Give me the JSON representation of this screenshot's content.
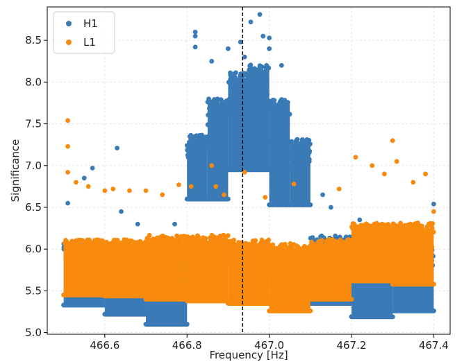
{
  "chart_data": {
    "type": "scatter",
    "xlabel": "Frequency [Hz]",
    "ylabel": "Significance",
    "xlim": [
      466.46,
      467.44
    ],
    "ylim": [
      4.98,
      8.9
    ],
    "xticks": [
      466.6,
      466.8,
      467.0,
      467.2,
      467.4
    ],
    "xtick_labels": [
      "466.6",
      "466.8",
      "467.0",
      "467.2",
      "467.4"
    ],
    "yticks": [
      5.0,
      5.5,
      6.0,
      6.5,
      7.0,
      7.5,
      8.0,
      8.5
    ],
    "ytick_labels": [
      "5.0",
      "5.5",
      "6.0",
      "6.5",
      "7.0",
      "7.5",
      "8.0",
      "8.5"
    ],
    "grid": true,
    "legend_position": "top-left",
    "vline": {
      "x": 466.935,
      "style": "dashed",
      "color": "#000000"
    },
    "series": [
      {
        "name": "H1",
        "color": "#3a7ab6",
        "segments": [
          {
            "x": [
              466.5,
              466.6
            ],
            "floor": 5.33,
            "dense_top": 6.0
          },
          {
            "x": [
              466.6,
              466.7
            ],
            "floor": 5.22,
            "dense_top": 5.95
          },
          {
            "x": [
              466.7,
              466.8
            ],
            "floor": 5.1,
            "dense_top": 5.95
          },
          {
            "x": [
              466.8,
              466.85
            ],
            "floor": 6.6,
            "dense_top": 7.3
          },
          {
            "x": [
              466.85,
              466.9
            ],
            "floor": 6.6,
            "dense_top": 7.75
          },
          {
            "x": [
              466.9,
              466.95
            ],
            "floor": 6.95,
            "dense_top": 8.05
          },
          {
            "x": [
              466.95,
              467.0
            ],
            "floor": 6.95,
            "dense_top": 8.15
          },
          {
            "x": [
              467.0,
              467.05
            ],
            "floor": 6.53,
            "dense_top": 7.75
          },
          {
            "x": [
              467.05,
              467.1
            ],
            "floor": 6.53,
            "dense_top": 7.25
          },
          {
            "x": [
              467.1,
              467.2
            ],
            "floor": 5.35,
            "dense_top": 6.1
          },
          {
            "x": [
              467.2,
              467.3
            ],
            "floor": 5.19,
            "dense_top": 6.0
          },
          {
            "x": [
              467.3,
              467.4
            ],
            "floor": 5.26,
            "dense_top": 5.95
          }
        ],
        "outliers": [
          [
            466.51,
            6.55
          ],
          [
            466.55,
            6.85
          ],
          [
            466.57,
            6.97
          ],
          [
            466.63,
            7.21
          ],
          [
            466.64,
            6.45
          ],
          [
            466.68,
            6.3
          ],
          [
            466.77,
            6.3
          ],
          [
            466.82,
            8.6
          ],
          [
            466.82,
            8.55
          ],
          [
            466.82,
            8.42
          ],
          [
            466.86,
            8.25
          ],
          [
            466.9,
            8.4
          ],
          [
            466.93,
            8.48
          ],
          [
            466.94,
            8.3
          ],
          [
            466.955,
            8.72
          ],
          [
            466.977,
            8.81
          ],
          [
            466.985,
            8.55
          ],
          [
            467.0,
            8.53
          ],
          [
            467.0,
            8.4
          ],
          [
            467.03,
            8.2
          ],
          [
            467.13,
            6.65
          ],
          [
            467.15,
            6.5
          ],
          [
            467.22,
            6.35
          ],
          [
            467.4,
            6.54
          ]
        ]
      },
      {
        "name": "L1",
        "color": "#f88a0d",
        "segments": [
          {
            "x": [
              466.5,
              466.6
            ],
            "floor": 5.45,
            "dense_top": 6.05
          },
          {
            "x": [
              466.6,
              466.7
            ],
            "floor": 5.44,
            "dense_top": 6.05
          },
          {
            "x": [
              466.7,
              466.8
            ],
            "floor": 5.4,
            "dense_top": 6.1
          },
          {
            "x": [
              466.8,
              466.9
            ],
            "floor": 5.38,
            "dense_top": 6.1
          },
          {
            "x": [
              466.9,
              467.0
            ],
            "floor": 5.35,
            "dense_top": 6.05
          },
          {
            "x": [
              467.0,
              467.1
            ],
            "floor": 5.26,
            "dense_top": 6.0
          },
          {
            "x": [
              467.1,
              467.2
            ],
            "floor": 5.4,
            "dense_top": 6.05
          },
          {
            "x": [
              467.2,
              467.3
            ],
            "floor": 5.62,
            "dense_top": 6.25
          },
          {
            "x": [
              467.3,
              467.4
            ],
            "floor": 5.58,
            "dense_top": 6.25
          }
        ],
        "outliers": [
          [
            466.51,
            7.54
          ],
          [
            466.51,
            7.23
          ],
          [
            466.51,
            6.92
          ],
          [
            466.53,
            6.8
          ],
          [
            466.56,
            6.75
          ],
          [
            466.6,
            6.7
          ],
          [
            466.62,
            6.72
          ],
          [
            466.66,
            6.7
          ],
          [
            466.7,
            6.7
          ],
          [
            466.74,
            6.65
          ],
          [
            466.78,
            6.77
          ],
          [
            466.81,
            6.75
          ],
          [
            466.86,
            7.0
          ],
          [
            466.87,
            6.75
          ],
          [
            466.89,
            6.65
          ],
          [
            466.94,
            6.92
          ],
          [
            466.99,
            6.62
          ],
          [
            467.06,
            6.78
          ],
          [
            467.17,
            6.72
          ],
          [
            467.21,
            7.1
          ],
          [
            467.25,
            7.0
          ],
          [
            467.28,
            6.9
          ],
          [
            467.3,
            7.3
          ],
          [
            467.31,
            7.05
          ],
          [
            467.35,
            6.8
          ],
          [
            467.38,
            6.9
          ],
          [
            467.4,
            6.45
          ]
        ]
      }
    ]
  }
}
